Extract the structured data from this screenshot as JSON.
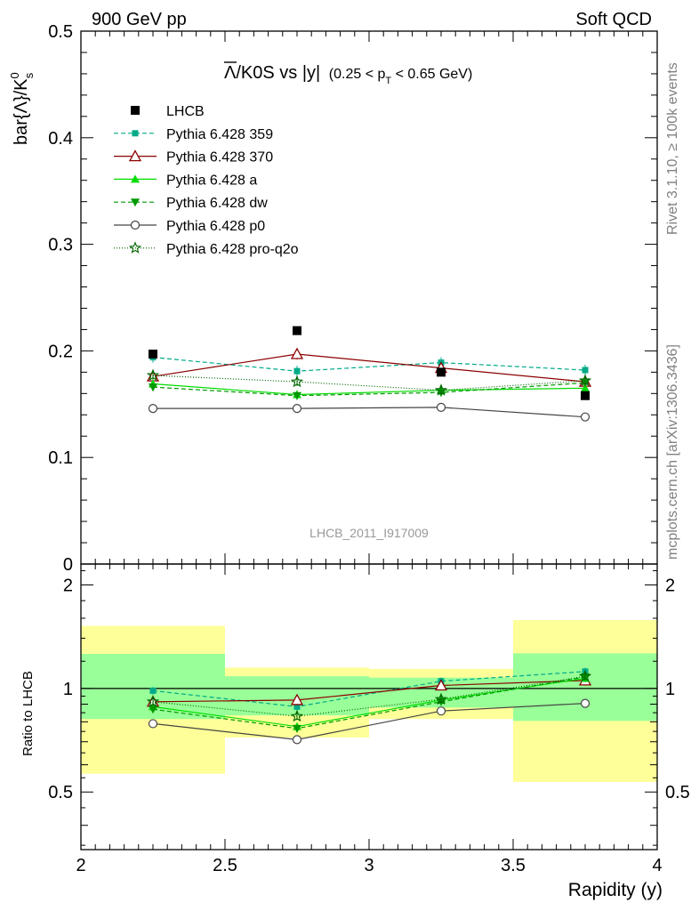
{
  "header": {
    "left": "900 GeV pp",
    "right": "Soft QCD"
  },
  "side": {
    "rivet": "Rivet 3.1.10, ≥ 100k events",
    "mcplots": "mcplots.cern.ch [arXiv:1306.3436]"
  },
  "chart_data": {
    "type": "line",
    "title_main": "Λ/K0S vs |y|",
    "title_bar_char": "Λ",
    "title_rest": "/K0S vs |y|",
    "title_sub_pre": "(0.25 < p",
    "title_sub_index": "T",
    "title_sub_post": " < 0.65 GeV)",
    "ylabel_main": "bar{Λ}/K",
    "ylabel_sup": "0",
    "ylabel_sub": "s",
    "ylabel_ratio": "Ratio to LHCB",
    "xlabel": "Rapidity (y)",
    "watermark": "LHCB_2011_I917009",
    "xlim": [
      2.0,
      4.0
    ],
    "ylim": [
      0,
      0.5
    ],
    "ratio_ylim": [
      0.34,
      2.3
    ],
    "x_ticks": [
      "2",
      "2.5",
      "3",
      "3.5",
      "4"
    ],
    "y_ticks": [
      "0",
      "0.1",
      "0.2",
      "0.3",
      "0.4",
      "0.5"
    ],
    "ratio_ticks": [
      "0.5",
      "1",
      "2"
    ],
    "bins": [
      [
        2.0,
        2.5
      ],
      [
        2.5,
        3.0
      ],
      [
        3.0,
        3.5
      ],
      [
        3.5,
        4.0
      ]
    ],
    "x": [
      2.25,
      2.75,
      3.25,
      3.75
    ],
    "data": {
      "name": "LHCB",
      "values": [
        0.197,
        0.219,
        0.18,
        0.158
      ]
    },
    "ratio_band_stat": [
      [
        0.815,
        1.26
      ],
      [
        0.835,
        1.085
      ],
      [
        0.88,
        1.075
      ],
      [
        0.805,
        1.265
      ]
    ],
    "ratio_band_total": [
      [
        0.565,
        1.52
      ],
      [
        0.72,
        1.15
      ],
      [
        0.815,
        1.14
      ],
      [
        0.535,
        1.58
      ]
    ],
    "series": [
      {
        "name": "Pythia 6.428 359",
        "values": [
          0.194,
          0.181,
          0.189,
          0.182
        ],
        "errors": [
          0.005,
          0.005,
          0.005,
          0.005
        ],
        "ratio": [
          0.985,
          0.885,
          1.05,
          1.12
        ],
        "color": "#00aa88",
        "dash": "5,3",
        "marker": "square-filled"
      },
      {
        "name": "Pythia 6.428 370",
        "values": [
          0.176,
          0.197,
          0.184,
          0.171
        ],
        "errors": [
          0.004,
          0.005,
          0.004,
          0.004
        ],
        "ratio": [
          0.915,
          0.925,
          1.02,
          1.055
        ],
        "color": "#8b0000",
        "dash": "",
        "marker": "triangle-open"
      },
      {
        "name": "Pythia 6.428 a",
        "values": [
          0.169,
          0.159,
          0.163,
          0.165
        ],
        "errors": [
          0.004,
          0.004,
          0.004,
          0.004
        ],
        "ratio": [
          0.885,
          0.775,
          0.925,
          1.07
        ],
        "color": "#00dd00",
        "dash": "",
        "marker": "triangle-filled"
      },
      {
        "name": "Pythia 6.428 dw",
        "values": [
          0.166,
          0.158,
          0.161,
          0.17
        ],
        "errors": [
          0.004,
          0.004,
          0.004,
          0.004
        ],
        "ratio": [
          0.87,
          0.765,
          0.915,
          1.08
        ],
        "color": "#009900",
        "dash": "5,3",
        "marker": "triangle-down-filled"
      },
      {
        "name": "Pythia 6.428 p0",
        "values": [
          0.146,
          0.146,
          0.147,
          0.138
        ],
        "errors": [
          0.004,
          0.004,
          0.004,
          0.004
        ],
        "ratio": [
          0.79,
          0.71,
          0.86,
          0.905
        ],
        "color": "#444444",
        "dash": "",
        "marker": "circle-open"
      },
      {
        "name": "Pythia 6.428 pro-q2o",
        "values": [
          0.177,
          0.171,
          0.163,
          0.172
        ],
        "errors": [
          0.004,
          0.004,
          0.004,
          0.004
        ],
        "ratio": [
          0.915,
          0.83,
          0.93,
          1.085
        ],
        "color": "#006600",
        "dash": "1,2",
        "marker": "star-open"
      }
    ]
  }
}
